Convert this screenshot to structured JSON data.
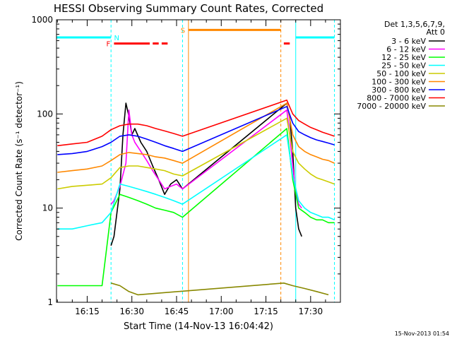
{
  "chart_data": {
    "type": "line",
    "title": "HESSI Observing Summary Count Rates, Corrected",
    "xlabel": "Start Time (14-Nov-13 16:04:42)",
    "ylabel": "Corrected Count Rate (s⁻¹ detector⁻¹)",
    "footer": "15-Nov-2013 01:54",
    "x_unit": "time (HH:MM, 14-Nov-13)",
    "xlim": [
      "16:04:42",
      "17:40:00"
    ],
    "ylim": [
      1,
      1000
    ],
    "yscale": "log",
    "xticks": [
      "16:15",
      "16:30",
      "16:45",
      "17:00",
      "17:15",
      "17:30"
    ],
    "yticks": [
      {
        "value": 1,
        "label": "1"
      },
      {
        "value": 10,
        "label": "10"
      },
      {
        "value": 100,
        "label": "100"
      },
      {
        "value": 1000,
        "label": "1000"
      }
    ],
    "legend": {
      "title_lines": [
        "Det 1,3,5,6,7,9,",
        "Att 0"
      ],
      "position": "right"
    },
    "series": [
      {
        "name": "3 - 6 keV",
        "color": "#000000",
        "x": [
          "16:23",
          "16:24",
          "16:26",
          "16:27",
          "16:28",
          "16:29",
          "16:30",
          "16:31",
          "16:33",
          "16:35",
          "16:37",
          "16:39",
          "16:41",
          "16:43",
          "16:45",
          "16:47",
          "17:22",
          "17:23",
          "17:24",
          "17:25",
          "17:26",
          "17:27"
        ],
        "y": [
          4,
          5,
          16,
          60,
          130,
          95,
          60,
          70,
          50,
          40,
          28,
          20,
          14,
          18,
          20,
          16,
          130,
          90,
          40,
          10,
          6,
          5
        ]
      },
      {
        "name": "6 - 12 keV",
        "color": "#ff00ff",
        "x": [
          "16:23",
          "16:24",
          "16:26",
          "16:28",
          "16:29",
          "16:30",
          "16:31",
          "16:33",
          "16:35",
          "16:37",
          "16:39",
          "16:41",
          "16:43",
          "16:45",
          "16:47",
          "17:22",
          "17:23",
          "17:24",
          "17:25",
          "17:26",
          "17:27"
        ],
        "y": [
          11,
          12,
          17,
          30,
          110,
          60,
          50,
          40,
          32,
          25,
          20,
          16,
          17,
          18,
          16,
          110,
          60,
          28,
          15,
          11,
          10
        ]
      },
      {
        "name": "12 - 25 keV",
        "color": "#00ff00",
        "x": [
          "16:05",
          "16:12",
          "16:20",
          "16:23",
          "16:26",
          "16:29",
          "16:32",
          "16:35",
          "16:38",
          "16:41",
          "16:44",
          "16:47",
          "17:22",
          "17:24",
          "17:26",
          "17:28",
          "17:30",
          "17:32",
          "17:34",
          "17:36",
          "17:38"
        ],
        "y": [
          1.5,
          1.5,
          1.5,
          9,
          14,
          13,
          12,
          11,
          10,
          9.5,
          9,
          8,
          70,
          20,
          10,
          9,
          8,
          7.5,
          7.5,
          7,
          7
        ]
      },
      {
        "name": "25 - 50 keV",
        "color": "#00ffff",
        "x": [
          "16:05",
          "16:10",
          "16:15",
          "16:20",
          "16:23",
          "16:26",
          "16:29",
          "16:32",
          "16:35",
          "16:38",
          "16:41",
          "16:44",
          "16:47",
          "17:22",
          "17:24",
          "17:26",
          "17:28",
          "17:30",
          "17:32",
          "17:34",
          "17:36",
          "17:38"
        ],
        "y": [
          6,
          6,
          6.5,
          7,
          9,
          18,
          17,
          16,
          15,
          14,
          13,
          12,
          11,
          60,
          22,
          12,
          10,
          9,
          8.5,
          8,
          8,
          7.5
        ]
      },
      {
        "name": "50 - 100 keV",
        "color": "#cccc00",
        "x": [
          "16:05",
          "16:10",
          "16:15",
          "16:20",
          "16:23",
          "16:26",
          "16:29",
          "16:32",
          "16:35",
          "16:38",
          "16:41",
          "16:44",
          "16:47",
          "17:22",
          "17:24",
          "17:26",
          "17:28",
          "17:30",
          "17:32",
          "17:34",
          "17:36",
          "17:38"
        ],
        "y": [
          16,
          17,
          17.5,
          18,
          21,
          27,
          28,
          28,
          27,
          26,
          25,
          23,
          22,
          90,
          40,
          30,
          26,
          23,
          21,
          20,
          19,
          18
        ]
      },
      {
        "name": "100 - 300 keV",
        "color": "#ff8800",
        "x": [
          "16:05",
          "16:10",
          "16:15",
          "16:20",
          "16:23",
          "16:26",
          "16:29",
          "16:32",
          "16:35",
          "16:38",
          "16:41",
          "16:44",
          "16:47",
          "17:22",
          "17:24",
          "17:26",
          "17:28",
          "17:30",
          "17:32",
          "17:34",
          "17:36",
          "17:38"
        ],
        "y": [
          24,
          25,
          26,
          28,
          32,
          37,
          39,
          38,
          37,
          35,
          34,
          32,
          30,
          130,
          60,
          45,
          40,
          37,
          35,
          33,
          32,
          30
        ]
      },
      {
        "name": "300 - 800 keV",
        "color": "#0000ff",
        "x": [
          "16:05",
          "16:10",
          "16:15",
          "16:20",
          "16:23",
          "16:26",
          "16:29",
          "16:32",
          "16:35",
          "16:38",
          "16:41",
          "16:44",
          "16:47",
          "17:22",
          "17:24",
          "17:26",
          "17:28",
          "17:30",
          "17:32",
          "17:34",
          "17:36",
          "17:38"
        ],
        "y": [
          37,
          38,
          40,
          45,
          50,
          58,
          60,
          58,
          54,
          50,
          46,
          43,
          40,
          120,
          80,
          65,
          60,
          56,
          53,
          51,
          49,
          47
        ]
      },
      {
        "name": "800 - 7000 keV",
        "color": "#ff0000",
        "x": [
          "16:05",
          "16:10",
          "16:15",
          "16:20",
          "16:23",
          "16:26",
          "16:29",
          "16:32",
          "16:35",
          "16:38",
          "16:41",
          "16:44",
          "16:47",
          "17:22",
          "17:24",
          "17:26",
          "17:28",
          "17:30",
          "17:32",
          "17:34",
          "17:36",
          "17:38"
        ],
        "y": [
          46,
          48,
          50,
          58,
          68,
          75,
          78,
          78,
          75,
          70,
          66,
          62,
          58,
          140,
          100,
          85,
          78,
          72,
          68,
          64,
          61,
          58
        ]
      },
      {
        "name": "7000 - 20000 keV",
        "color": "#888800",
        "x": [
          "16:23",
          "16:26",
          "16:29",
          "16:32",
          "17:21",
          "17:24",
          "17:28",
          "17:32",
          "17:36"
        ],
        "y": [
          1.6,
          1.5,
          1.3,
          1.2,
          1.6,
          1.5,
          1.4,
          1.3,
          1.2
        ]
      }
    ],
    "flags": [
      {
        "label": "N",
        "color": "#00ffff",
        "segments": [
          [
            "16:04:42",
            "16:23"
          ],
          [
            "17:25",
            "17:38"
          ]
        ]
      },
      {
        "label": "F",
        "color": "#ff0000",
        "segments": [
          [
            "16:24",
            "16:36"
          ],
          [
            "16:37",
            "16:39"
          ],
          [
            "16:40",
            "16:42"
          ],
          [
            "17:21",
            "17:23"
          ]
        ]
      },
      {
        "label": "S",
        "color": "#ff8800",
        "segments": [
          [
            "16:49",
            "17:20"
          ]
        ]
      }
    ],
    "vlines": [
      {
        "time": "16:23",
        "color": "#00ffff",
        "style": "dashed"
      },
      {
        "time": "16:47",
        "color": "#00ffff",
        "style": "dashed"
      },
      {
        "time": "16:49",
        "color": "#ff8800",
        "style": "solid"
      },
      {
        "time": "17:20",
        "color": "#ff8800",
        "style": "dashed"
      },
      {
        "time": "17:25",
        "color": "#00ffff",
        "style": "solid"
      },
      {
        "time": "17:38",
        "color": "#00ffff",
        "style": "dashed"
      }
    ],
    "grid": false
  }
}
